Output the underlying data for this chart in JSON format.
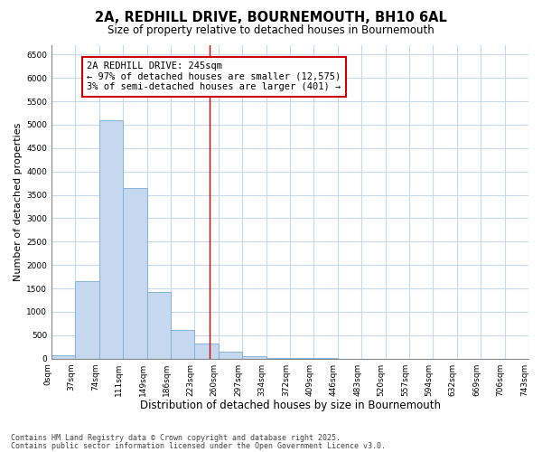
{
  "title": "2A, REDHILL DRIVE, BOURNEMOUTH, BH10 6AL",
  "subtitle": "Size of property relative to detached houses in Bournemouth",
  "xlabel": "Distribution of detached houses by size in Bournemouth",
  "ylabel": "Number of detached properties",
  "bin_labels": [
    "0sqm",
    "37sqm",
    "74sqm",
    "111sqm",
    "149sqm",
    "186sqm",
    "223sqm",
    "260sqm",
    "297sqm",
    "334sqm",
    "372sqm",
    "409sqm",
    "446sqm",
    "483sqm",
    "520sqm",
    "557sqm",
    "594sqm",
    "632sqm",
    "669sqm",
    "706sqm",
    "743sqm"
  ],
  "bar_values": [
    60,
    1650,
    5100,
    3650,
    1430,
    620,
    320,
    145,
    50,
    20,
    5,
    2,
    0,
    0,
    0,
    0,
    0,
    0,
    0,
    0
  ],
  "bar_color": "#c5d8f0",
  "bar_edge_color": "#7aadd4",
  "background_color": "#ffffff",
  "plot_bg_color": "#ffffff",
  "grid_color": "#c8d8ed",
  "property_line_x": 245,
  "bin_width": 37,
  "ylim": [
    0,
    6700
  ],
  "yticks": [
    0,
    500,
    1000,
    1500,
    2000,
    2500,
    3000,
    3500,
    4000,
    4500,
    5000,
    5500,
    6000,
    6500
  ],
  "annotation_title": "2A REDHILL DRIVE: 245sqm",
  "annotation_line1": "← 97% of detached houses are smaller (12,575)",
  "annotation_line2": "3% of semi-detached houses are larger (401) →",
  "annotation_box_color": "#ffffff",
  "annotation_box_edge": "#cc0000",
  "vline_color": "#cc0000",
  "footer_line1": "Contains HM Land Registry data © Crown copyright and database right 2025.",
  "footer_line2": "Contains public sector information licensed under the Open Government Licence v3.0.",
  "title_fontsize": 10.5,
  "subtitle_fontsize": 8.5,
  "tick_fontsize": 6.5,
  "xlabel_fontsize": 8.5,
  "ylabel_fontsize": 8,
  "annotation_fontsize": 7.5,
  "footer_fontsize": 6
}
